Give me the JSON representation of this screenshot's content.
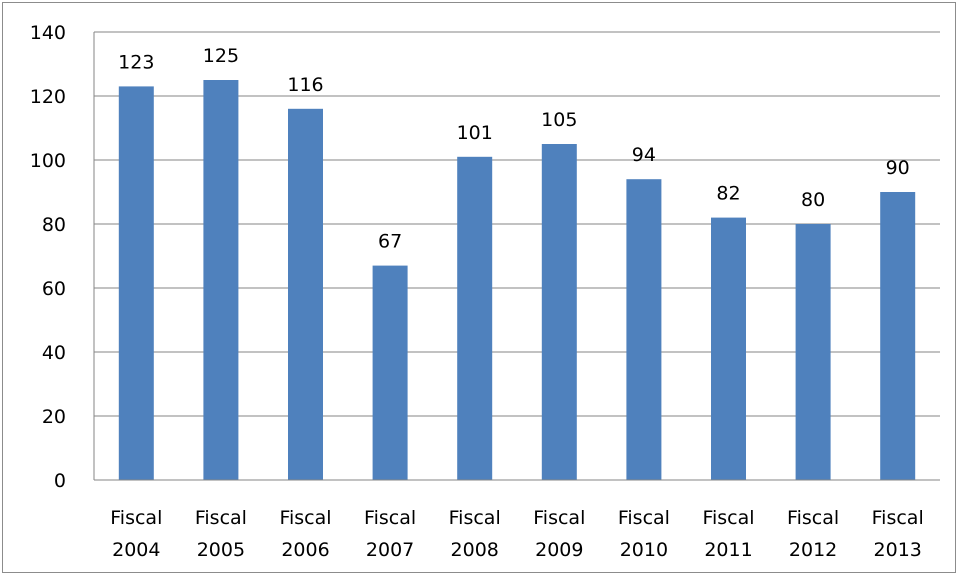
{
  "chart_data": {
    "type": "bar",
    "categories": [
      [
        "Fiscal",
        "2004"
      ],
      [
        "Fiscal",
        "2005"
      ],
      [
        "Fiscal",
        "2006"
      ],
      [
        "Fiscal",
        "2007"
      ],
      [
        "Fiscal",
        "2008"
      ],
      [
        "Fiscal",
        "2009"
      ],
      [
        "Fiscal",
        "2010"
      ],
      [
        "Fiscal",
        "2011"
      ],
      [
        "Fiscal",
        "2012"
      ],
      [
        "Fiscal",
        "2013"
      ]
    ],
    "values": [
      123,
      125,
      116,
      67,
      101,
      105,
      94,
      82,
      80,
      90
    ],
    "data_labels": [
      "123",
      "125",
      "116",
      "67",
      "101",
      "105",
      "94",
      "82",
      "80",
      "90"
    ],
    "title": "",
    "xlabel": "",
    "ylabel": "",
    "ylim": [
      0,
      140
    ],
    "yticks": [
      "0",
      "20",
      "40",
      "60",
      "80",
      "100",
      "120",
      "140"
    ],
    "grid": "horizontal",
    "legend": "none",
    "colors": {
      "bar": "#4f81bd",
      "grid": "#868686",
      "frame": "#8c8c8c"
    }
  }
}
